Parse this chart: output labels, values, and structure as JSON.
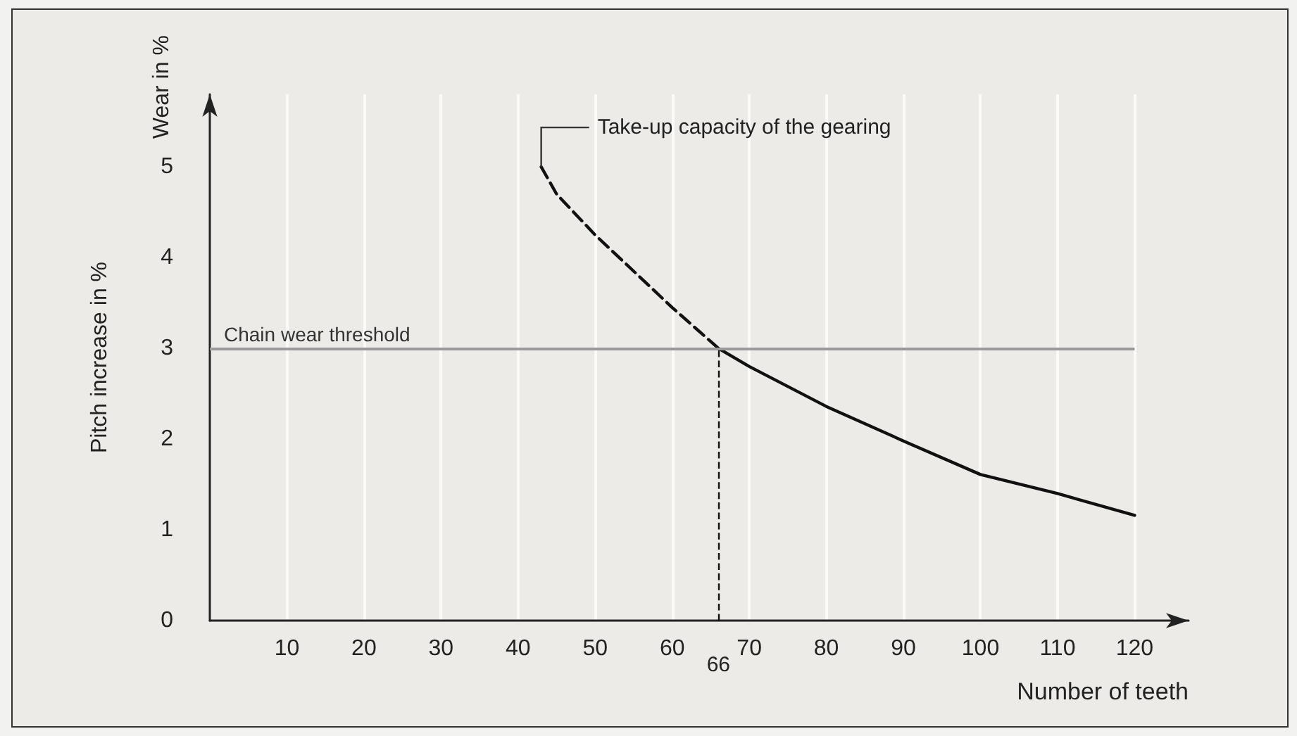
{
  "chart_data": {
    "type": "line",
    "xlabel": "Number of teeth",
    "ylabel": "Pitch increase in %",
    "xlim": [
      0,
      127
    ],
    "ylim": [
      0,
      5.8
    ],
    "xticks": [
      10,
      20,
      30,
      40,
      50,
      60,
      70,
      80,
      90,
      100,
      110,
      120
    ],
    "yticks": [
      0,
      1,
      2,
      3,
      4,
      5
    ],
    "grid": "x",
    "marker": "none",
    "series": [
      {
        "color": "#111111",
        "line_style": "dashed",
        "x": [
          43,
          45,
          50,
          55,
          60,
          66
        ],
        "values": [
          5,
          4.7,
          4.25,
          3.85,
          3.45,
          3
        ]
      },
      {
        "color": "#111111",
        "line_style": "solid",
        "x": [
          66,
          70,
          80,
          90,
          100,
          110,
          120
        ],
        "values": [
          3,
          2.8,
          2.36,
          1.98,
          1.61,
          1.4,
          1.16
        ]
      }
    ],
    "ref_lines": [
      {
        "axis": "y",
        "value": 3,
        "label": "Chain wear threshold",
        "color": "#9a9a9a"
      },
      {
        "axis": "x",
        "value": 66,
        "label": "66",
        "color": "#111111",
        "line_style": "dashed"
      }
    ],
    "annotations": [
      "Wear in %",
      {
        "text": "Take-up capacity of the gearing",
        "x": 43,
        "y": 5
      }
    ]
  }
}
